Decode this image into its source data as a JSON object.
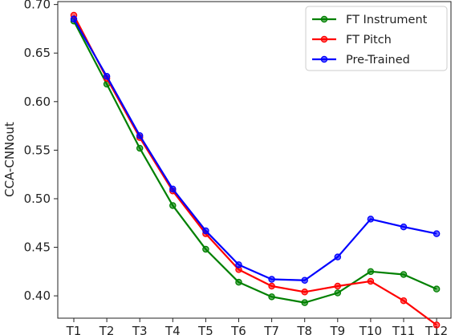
{
  "chart_data": {
    "type": "line",
    "title": "",
    "xlabel": "",
    "ylabel": "CCA-CNNout",
    "categories": [
      "T1",
      "T2",
      "T3",
      "T4",
      "T5",
      "T6",
      "T7",
      "T8",
      "T9",
      "T10",
      "T11",
      "T12"
    ],
    "ylim": [
      0.377,
      0.703
    ],
    "yticks": [
      "0.40",
      "0.45",
      "0.50",
      "0.55",
      "0.60",
      "0.65",
      "0.70"
    ],
    "grid": false,
    "legend_position": "top-right",
    "series": [
      {
        "name": "FT Instrument",
        "color": "#008000",
        "values": [
          0.683,
          0.618,
          0.552,
          0.493,
          0.448,
          0.414,
          0.399,
          0.393,
          0.403,
          0.425,
          0.422,
          0.407
        ]
      },
      {
        "name": "FT Pitch",
        "color": "#ff0000",
        "values": [
          0.689,
          0.624,
          0.563,
          0.508,
          0.464,
          0.427,
          0.41,
          0.404,
          0.41,
          0.415,
          0.395,
          0.37
        ]
      },
      {
        "name": "Pre-Trained",
        "color": "#0000ff",
        "values": [
          0.685,
          0.626,
          0.565,
          0.51,
          0.467,
          0.432,
          0.417,
          0.416,
          0.44,
          0.479,
          0.471,
          0.464
        ]
      }
    ]
  }
}
